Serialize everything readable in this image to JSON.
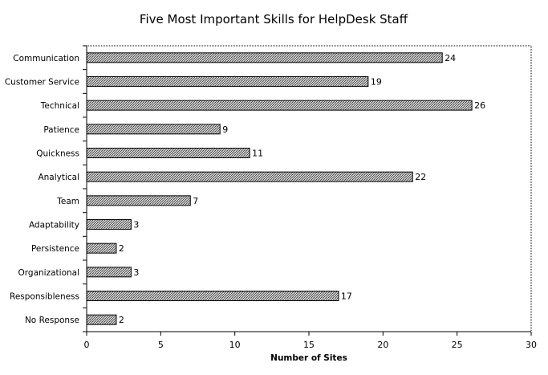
{
  "chart_data": {
    "type": "bar",
    "orientation": "horizontal",
    "title": "Five Most Important Skills for HelpDesk Staff",
    "xlabel": "Number of Sites",
    "ylabel": "",
    "categories": [
      "Communication",
      "Customer Service",
      "Technical",
      "Patience",
      "Quickness",
      "Analytical",
      "Team",
      "Adaptability",
      "Persistence",
      "Organizational",
      "Responsibleness",
      "No Response"
    ],
    "values": [
      24,
      19,
      26,
      9,
      11,
      22,
      7,
      3,
      2,
      3,
      17,
      2
    ],
    "xlim": [
      0,
      30
    ],
    "xticks": [
      0,
      5,
      10,
      15,
      20,
      25,
      30
    ],
    "grid": false,
    "bar_fill": "hatched gray",
    "data_labels": true
  }
}
